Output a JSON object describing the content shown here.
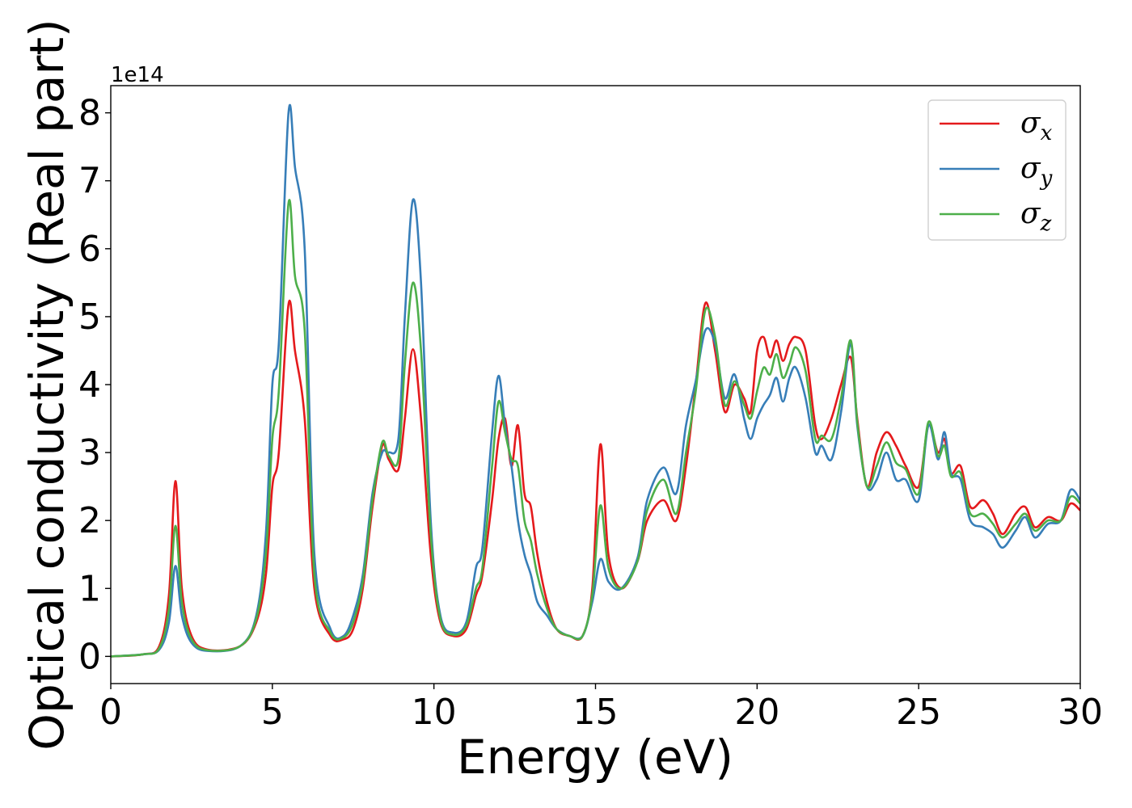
{
  "chart_data": {
    "type": "line",
    "title": "",
    "xlabel": "Energy (eV)",
    "ylabel": "Optical conductivity (Real part)",
    "y_offset_label": "1e14",
    "xlim": [
      0,
      30
    ],
    "ylim": [
      -0.4,
      8.4
    ],
    "xticks": [
      0,
      5,
      10,
      15,
      20,
      25,
      30
    ],
    "yticks": [
      0,
      1,
      2,
      3,
      4,
      5,
      6,
      7,
      8
    ],
    "grid": false,
    "legend_position": "top-right",
    "series": [
      {
        "name": "σ",
        "subscript": "x",
        "color": "#e41a1c",
        "points": [
          [
            0,
            0
          ],
          [
            1,
            0.03
          ],
          [
            1.5,
            0.15
          ],
          [
            1.8,
            0.9
          ],
          [
            2.0,
            2.58
          ],
          [
            2.2,
            1.0
          ],
          [
            2.5,
            0.3
          ],
          [
            3.0,
            0.1
          ],
          [
            4.0,
            0.15
          ],
          [
            4.5,
            0.5
          ],
          [
            4.8,
            1.2
          ],
          [
            5.0,
            2.5
          ],
          [
            5.2,
            3.0
          ],
          [
            5.5,
            5.18
          ],
          [
            5.7,
            4.5
          ],
          [
            6.0,
            3.5
          ],
          [
            6.3,
            1.0
          ],
          [
            6.8,
            0.3
          ],
          [
            7.2,
            0.25
          ],
          [
            7.5,
            0.4
          ],
          [
            7.8,
            1.0
          ],
          [
            8.1,
            2.2
          ],
          [
            8.4,
            3.1
          ],
          [
            8.6,
            2.9
          ],
          [
            8.9,
            2.75
          ],
          [
            9.1,
            3.5
          ],
          [
            9.35,
            4.52
          ],
          [
            9.6,
            3.5
          ],
          [
            9.9,
            1.5
          ],
          [
            10.2,
            0.5
          ],
          [
            10.6,
            0.3
          ],
          [
            11.0,
            0.4
          ],
          [
            11.3,
            0.9
          ],
          [
            11.5,
            1.2
          ],
          [
            11.8,
            2.3
          ],
          [
            12.0,
            3.2
          ],
          [
            12.2,
            3.5
          ],
          [
            12.4,
            2.8
          ],
          [
            12.6,
            3.4
          ],
          [
            12.8,
            2.4
          ],
          [
            13.0,
            2.2
          ],
          [
            13.2,
            1.5
          ],
          [
            13.5,
            0.8
          ],
          [
            13.8,
            0.4
          ],
          [
            14.2,
            0.3
          ],
          [
            14.6,
            0.3
          ],
          [
            14.9,
            1.0
          ],
          [
            15.15,
            3.12
          ],
          [
            15.4,
            1.5
          ],
          [
            15.8,
            1.0
          ],
          [
            16.3,
            1.4
          ],
          [
            16.6,
            2.0
          ],
          [
            17.1,
            2.3
          ],
          [
            17.5,
            2.0
          ],
          [
            17.8,
            2.8
          ],
          [
            18.1,
            4.0
          ],
          [
            18.4,
            5.2
          ],
          [
            18.7,
            4.5
          ],
          [
            19.0,
            3.6
          ],
          [
            19.3,
            4.0
          ],
          [
            19.6,
            3.8
          ],
          [
            19.8,
            3.6
          ],
          [
            20.0,
            4.5
          ],
          [
            20.2,
            4.7
          ],
          [
            20.4,
            4.4
          ],
          [
            20.6,
            4.65
          ],
          [
            20.8,
            4.35
          ],
          [
            21.0,
            4.6
          ],
          [
            21.2,
            4.7
          ],
          [
            21.5,
            4.5
          ],
          [
            21.8,
            3.4
          ],
          [
            22.0,
            3.2
          ],
          [
            22.3,
            3.5
          ],
          [
            22.6,
            4.0
          ],
          [
            22.9,
            4.4
          ],
          [
            23.1,
            3.5
          ],
          [
            23.4,
            2.5
          ],
          [
            23.7,
            3.0
          ],
          [
            24.0,
            3.3
          ],
          [
            24.3,
            3.1
          ],
          [
            24.6,
            2.8
          ],
          [
            25.0,
            2.5
          ],
          [
            25.3,
            3.4
          ],
          [
            25.6,
            3.0
          ],
          [
            25.8,
            3.2
          ],
          [
            26.0,
            2.7
          ],
          [
            26.3,
            2.8
          ],
          [
            26.6,
            2.2
          ],
          [
            27.0,
            2.3
          ],
          [
            27.3,
            2.1
          ],
          [
            27.6,
            1.8
          ],
          [
            28.0,
            2.1
          ],
          [
            28.3,
            2.2
          ],
          [
            28.6,
            1.9
          ],
          [
            29.0,
            2.05
          ],
          [
            29.4,
            2.0
          ],
          [
            29.7,
            2.25
          ],
          [
            30.0,
            2.15
          ]
        ]
      },
      {
        "name": "σ",
        "subscript": "y",
        "color": "#377eb8",
        "points": [
          [
            0,
            0
          ],
          [
            1,
            0.03
          ],
          [
            1.5,
            0.1
          ],
          [
            1.8,
            0.5
          ],
          [
            2.0,
            1.33
          ],
          [
            2.2,
            0.6
          ],
          [
            2.5,
            0.2
          ],
          [
            3.0,
            0.08
          ],
          [
            4.0,
            0.15
          ],
          [
            4.5,
            0.6
          ],
          [
            4.8,
            1.8
          ],
          [
            5.0,
            4.0
          ],
          [
            5.2,
            4.6
          ],
          [
            5.5,
            8.0
          ],
          [
            5.7,
            7.2
          ],
          [
            6.0,
            6.0
          ],
          [
            6.3,
            1.5
          ],
          [
            6.8,
            0.4
          ],
          [
            7.2,
            0.3
          ],
          [
            7.5,
            0.6
          ],
          [
            7.8,
            1.2
          ],
          [
            8.1,
            2.4
          ],
          [
            8.4,
            3.0
          ],
          [
            8.6,
            3.0
          ],
          [
            8.9,
            3.2
          ],
          [
            9.1,
            5.0
          ],
          [
            9.35,
            6.72
          ],
          [
            9.6,
            5.5
          ],
          [
            9.9,
            2.0
          ],
          [
            10.2,
            0.6
          ],
          [
            10.6,
            0.35
          ],
          [
            11.0,
            0.5
          ],
          [
            11.3,
            1.3
          ],
          [
            11.5,
            1.6
          ],
          [
            11.8,
            3.3
          ],
          [
            12.0,
            4.13
          ],
          [
            12.2,
            3.4
          ],
          [
            12.4,
            2.8
          ],
          [
            12.6,
            2.0
          ],
          [
            12.8,
            1.5
          ],
          [
            13.0,
            1.2
          ],
          [
            13.2,
            0.8
          ],
          [
            13.5,
            0.6
          ],
          [
            13.8,
            0.4
          ],
          [
            14.2,
            0.3
          ],
          [
            14.6,
            0.3
          ],
          [
            14.9,
            0.8
          ],
          [
            15.15,
            1.43
          ],
          [
            15.4,
            1.1
          ],
          [
            15.8,
            1.0
          ],
          [
            16.3,
            1.45
          ],
          [
            16.6,
            2.3
          ],
          [
            17.1,
            2.78
          ],
          [
            17.5,
            2.4
          ],
          [
            17.8,
            3.4
          ],
          [
            18.1,
            4.05
          ],
          [
            18.4,
            4.8
          ],
          [
            18.7,
            4.6
          ],
          [
            19.0,
            3.8
          ],
          [
            19.3,
            4.15
          ],
          [
            19.6,
            3.5
          ],
          [
            19.8,
            3.2
          ],
          [
            20.0,
            3.5
          ],
          [
            20.2,
            3.7
          ],
          [
            20.4,
            3.85
          ],
          [
            20.6,
            4.1
          ],
          [
            20.8,
            3.75
          ],
          [
            21.0,
            4.1
          ],
          [
            21.2,
            4.25
          ],
          [
            21.5,
            3.8
          ],
          [
            21.8,
            3.0
          ],
          [
            22.0,
            3.1
          ],
          [
            22.3,
            2.9
          ],
          [
            22.6,
            3.6
          ],
          [
            22.9,
            4.6
          ],
          [
            23.1,
            3.4
          ],
          [
            23.4,
            2.5
          ],
          [
            23.7,
            2.6
          ],
          [
            24.0,
            3.0
          ],
          [
            24.3,
            2.6
          ],
          [
            24.6,
            2.6
          ],
          [
            25.0,
            2.3
          ],
          [
            25.3,
            3.4
          ],
          [
            25.6,
            2.9
          ],
          [
            25.8,
            3.3
          ],
          [
            26.0,
            2.7
          ],
          [
            26.3,
            2.6
          ],
          [
            26.6,
            2.0
          ],
          [
            27.0,
            1.9
          ],
          [
            27.3,
            1.8
          ],
          [
            27.6,
            1.6
          ],
          [
            28.0,
            1.85
          ],
          [
            28.3,
            2.05
          ],
          [
            28.6,
            1.75
          ],
          [
            29.0,
            1.95
          ],
          [
            29.4,
            2.0
          ],
          [
            29.7,
            2.45
          ],
          [
            30.0,
            2.3
          ]
        ]
      },
      {
        "name": "σ",
        "subscript": "z",
        "color": "#4daf4a",
        "points": [
          [
            0,
            0
          ],
          [
            1,
            0.03
          ],
          [
            1.5,
            0.12
          ],
          [
            1.8,
            0.7
          ],
          [
            2.0,
            1.92
          ],
          [
            2.2,
            0.8
          ],
          [
            2.5,
            0.25
          ],
          [
            3.0,
            0.09
          ],
          [
            4.0,
            0.15
          ],
          [
            4.5,
            0.55
          ],
          [
            4.8,
            1.5
          ],
          [
            5.0,
            3.2
          ],
          [
            5.2,
            3.9
          ],
          [
            5.5,
            6.67
          ],
          [
            5.7,
            5.6
          ],
          [
            6.0,
            4.8
          ],
          [
            6.3,
            1.2
          ],
          [
            6.8,
            0.35
          ],
          [
            7.2,
            0.28
          ],
          [
            7.5,
            0.5
          ],
          [
            7.8,
            1.1
          ],
          [
            8.1,
            2.3
          ],
          [
            8.4,
            3.15
          ],
          [
            8.6,
            2.95
          ],
          [
            8.9,
            2.9
          ],
          [
            9.1,
            4.3
          ],
          [
            9.35,
            5.5
          ],
          [
            9.6,
            4.5
          ],
          [
            9.9,
            1.8
          ],
          [
            10.2,
            0.55
          ],
          [
            10.6,
            0.32
          ],
          [
            11.0,
            0.45
          ],
          [
            11.3,
            1.0
          ],
          [
            11.5,
            1.3
          ],
          [
            11.8,
            2.8
          ],
          [
            12.0,
            3.75
          ],
          [
            12.2,
            3.3
          ],
          [
            12.4,
            2.9
          ],
          [
            12.6,
            2.8
          ],
          [
            12.8,
            2.0
          ],
          [
            13.0,
            1.7
          ],
          [
            13.2,
            1.2
          ],
          [
            13.5,
            0.7
          ],
          [
            13.8,
            0.4
          ],
          [
            14.2,
            0.3
          ],
          [
            14.6,
            0.3
          ],
          [
            14.9,
            0.9
          ],
          [
            15.15,
            2.22
          ],
          [
            15.4,
            1.3
          ],
          [
            15.8,
            1.0
          ],
          [
            16.3,
            1.4
          ],
          [
            16.6,
            2.15
          ],
          [
            17.1,
            2.6
          ],
          [
            17.5,
            2.1
          ],
          [
            17.8,
            3.0
          ],
          [
            18.1,
            3.9
          ],
          [
            18.4,
            5.1
          ],
          [
            18.7,
            4.7
          ],
          [
            19.0,
            3.7
          ],
          [
            19.3,
            4.05
          ],
          [
            19.6,
            3.7
          ],
          [
            19.8,
            3.5
          ],
          [
            20.0,
            3.9
          ],
          [
            20.2,
            4.25
          ],
          [
            20.4,
            4.15
          ],
          [
            20.6,
            4.45
          ],
          [
            20.8,
            4.1
          ],
          [
            21.0,
            4.3
          ],
          [
            21.2,
            4.55
          ],
          [
            21.5,
            4.2
          ],
          [
            21.8,
            3.2
          ],
          [
            22.0,
            3.25
          ],
          [
            22.3,
            3.2
          ],
          [
            22.6,
            3.8
          ],
          [
            22.9,
            4.65
          ],
          [
            23.1,
            3.45
          ],
          [
            23.4,
            2.5
          ],
          [
            23.7,
            2.8
          ],
          [
            24.0,
            3.15
          ],
          [
            24.3,
            2.85
          ],
          [
            24.6,
            2.75
          ],
          [
            25.0,
            2.4
          ],
          [
            25.3,
            3.45
          ],
          [
            25.6,
            2.95
          ],
          [
            25.8,
            3.1
          ],
          [
            26.0,
            2.65
          ],
          [
            26.3,
            2.7
          ],
          [
            26.6,
            2.1
          ],
          [
            27.0,
            2.1
          ],
          [
            27.3,
            1.95
          ],
          [
            27.6,
            1.75
          ],
          [
            28.0,
            1.95
          ],
          [
            28.3,
            2.1
          ],
          [
            28.6,
            1.85
          ],
          [
            29.0,
            2.0
          ],
          [
            29.4,
            2.0
          ],
          [
            29.7,
            2.35
          ],
          [
            30.0,
            2.25
          ]
        ]
      }
    ]
  }
}
